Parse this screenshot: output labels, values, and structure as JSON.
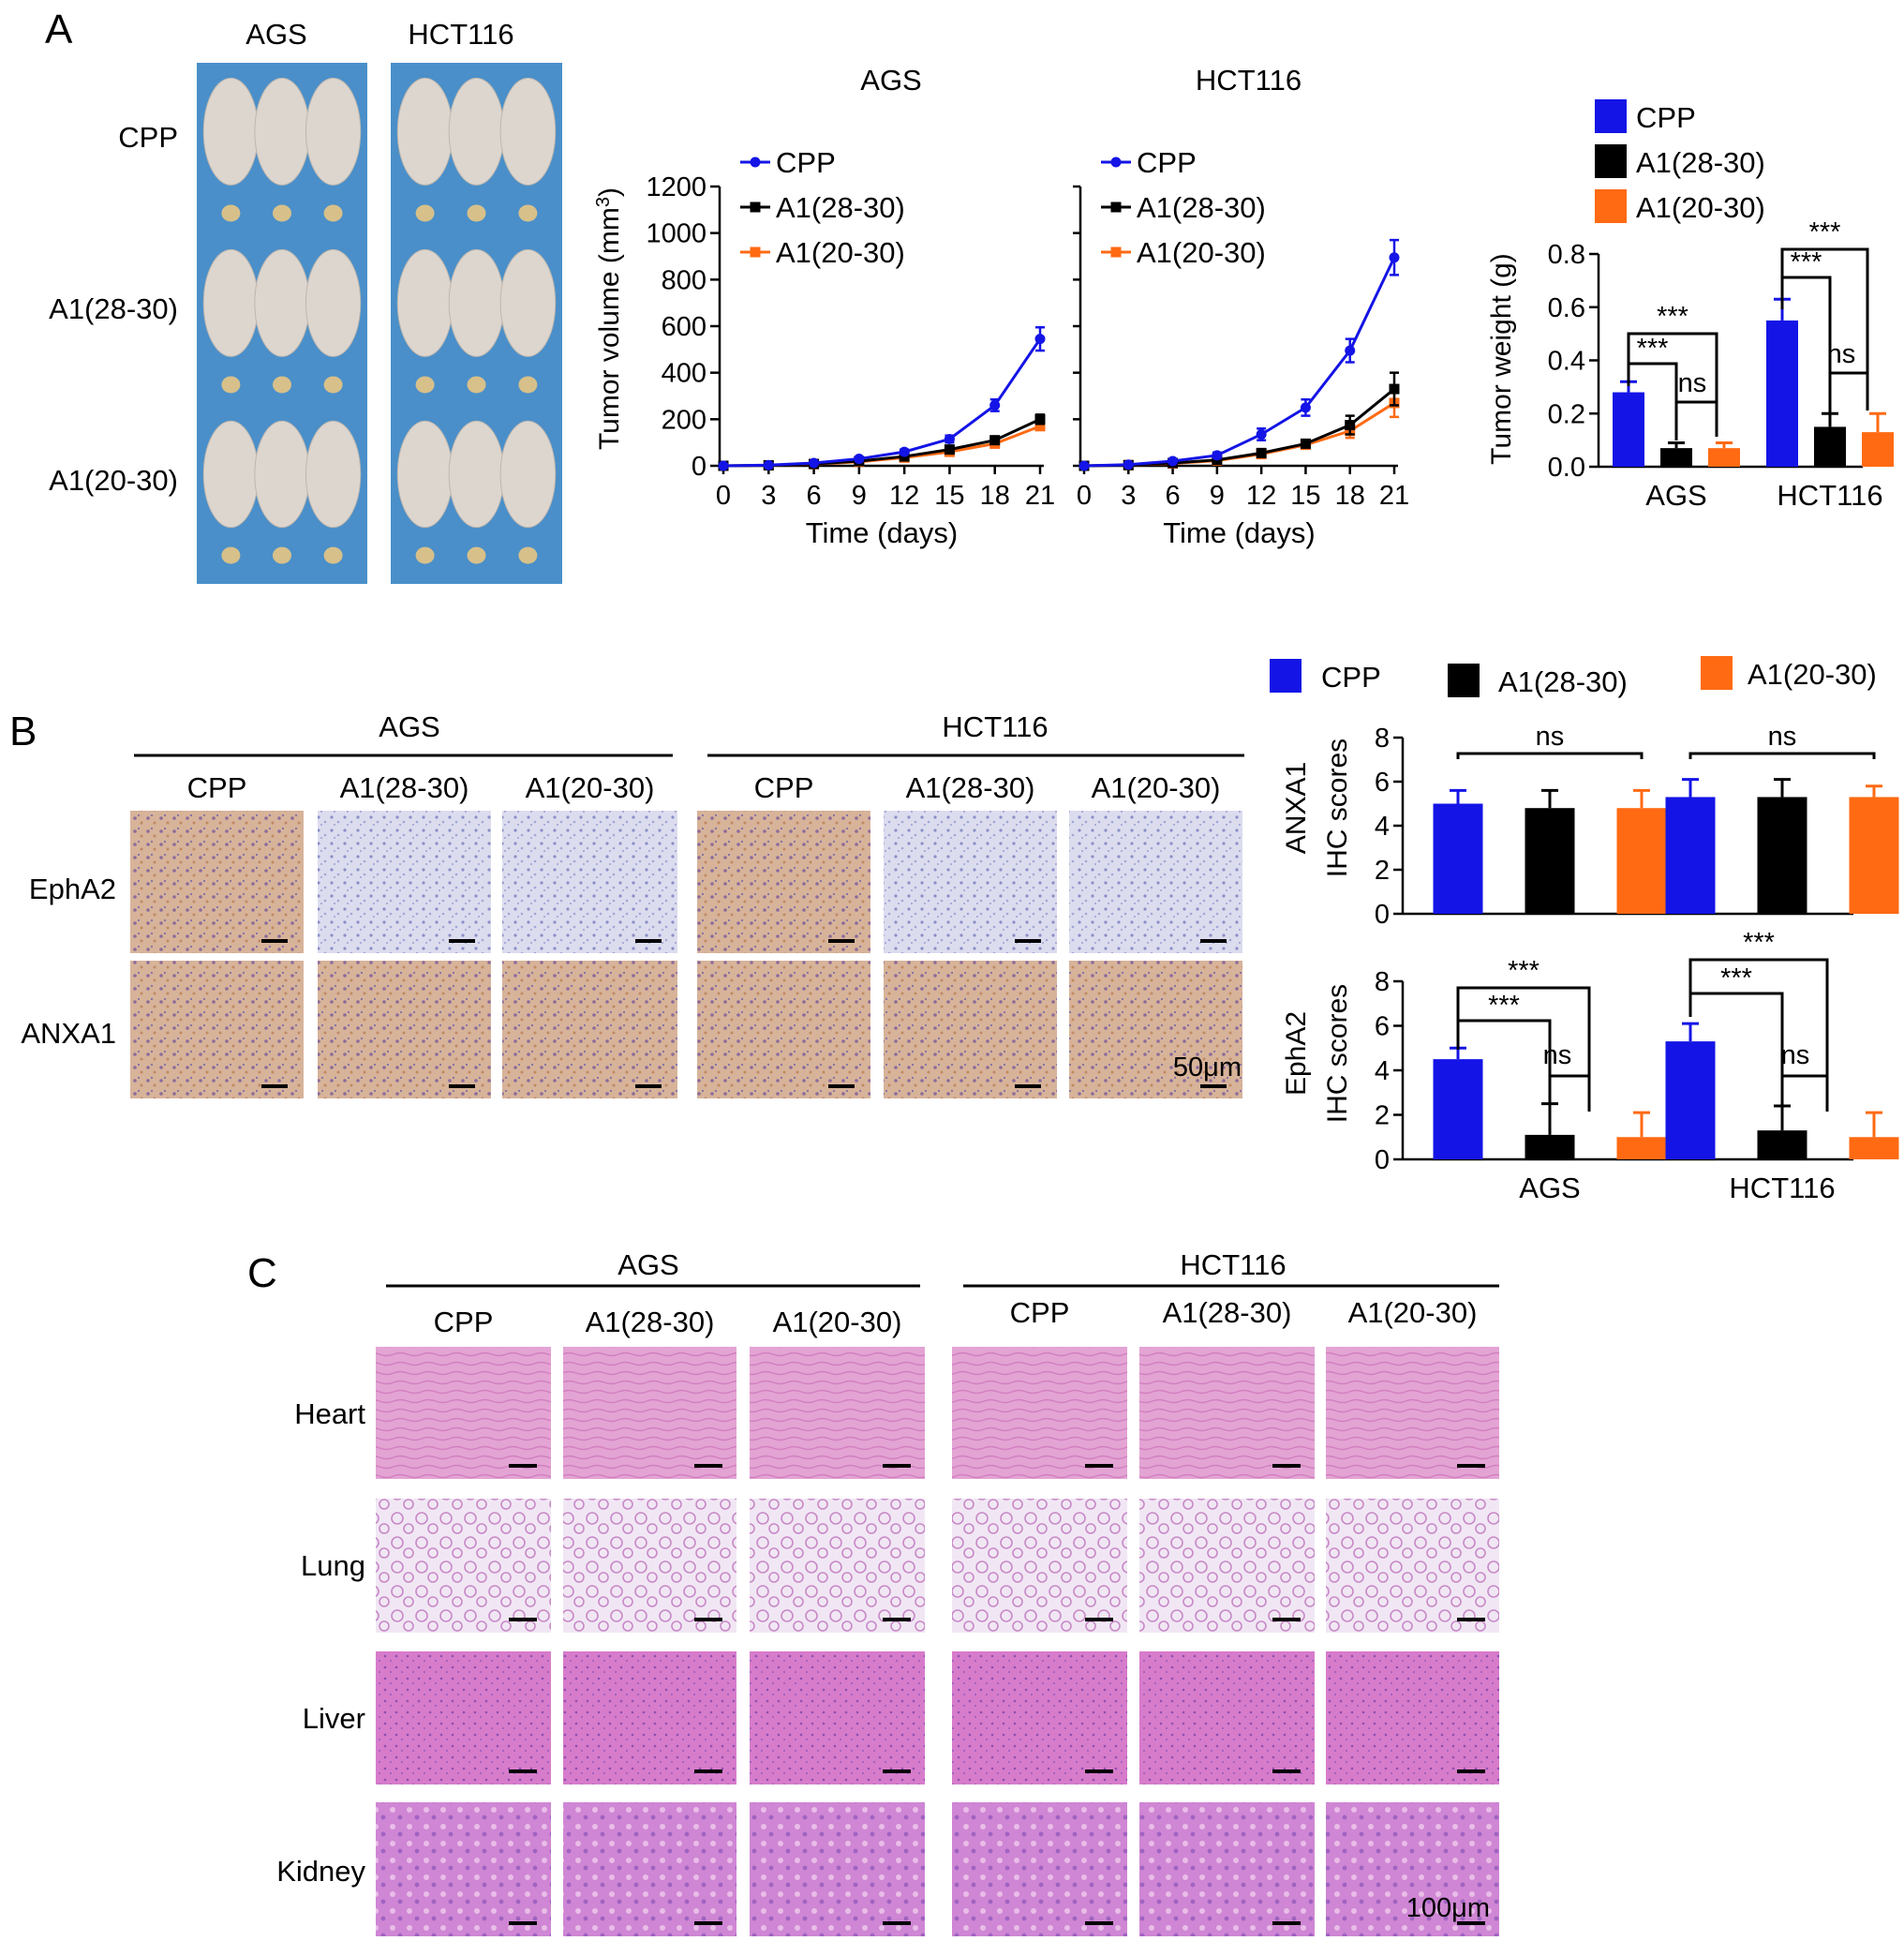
{
  "panels": {
    "a": "A",
    "b": "B",
    "c": "C"
  },
  "colors": {
    "CPP": "#1414e6",
    "A1(28-30)": "#000000",
    "A1(20-30)": "#ff6a13",
    "mouse_bg": "#4a8fc9"
  },
  "mice": {
    "col_labels": [
      "AGS",
      "HCT116"
    ],
    "row_labels": [
      "CPP",
      "A1(28-30)",
      "A1(20-30)"
    ]
  },
  "growth": {
    "ylabel": "Tumor volume (mm",
    "ylabel_sup": "3",
    "ylabel_close": ")",
    "xlabel": "Time (days)",
    "x_ticks": [
      "0",
      "3",
      "6",
      "9",
      "12",
      "15",
      "18",
      "21"
    ],
    "y_ticks": [
      "0",
      "200",
      "400",
      "600",
      "800",
      "1000",
      "1200"
    ],
    "legend": [
      "CPP",
      "A1(28-30)",
      "A1(20-30)"
    ]
  },
  "weight": {
    "ylabel": "Tumor weight (g)",
    "y_ticks": [
      "0.0",
      "0.2",
      "0.4",
      "0.6",
      "0.8"
    ],
    "legend": [
      "CPP",
      "A1(28-30)",
      "A1(20-30)"
    ],
    "sig": "***",
    "ns": "ns"
  },
  "ihc": {
    "group_labels": [
      "AGS",
      "HCT116"
    ],
    "col_labels": [
      "CPP",
      "A1(28-30)",
      "A1(20-30)",
      "CPP",
      "A1(28-30)",
      "A1(20-30)"
    ],
    "row_labels": [
      "EphA2",
      "ANXA1"
    ],
    "scale": "50μm",
    "legend": [
      "CPP",
      "A1(28-30)",
      "A1(20-30)"
    ],
    "ylabel_anxa1": [
      "ANXA1",
      "IHC scores"
    ],
    "ylabel_epha2": [
      "EphA2",
      "IHC scores"
    ],
    "y_ticks": [
      "0",
      "2",
      "4",
      "6",
      "8"
    ],
    "sig": "***",
    "ns": "ns"
  },
  "he": {
    "group_labels": [
      "AGS",
      "HCT116"
    ],
    "col_labels": [
      "CPP",
      "A1(28-30)",
      "A1(20-30)",
      "CPP",
      "A1(28-30)",
      "A1(20-30)"
    ],
    "row_labels": [
      "Heart",
      "Lung",
      "Liver",
      "Kidney"
    ],
    "scale": "100μm"
  },
  "chart_data": [
    {
      "type": "line",
      "title": "AGS",
      "xlabel": "Time (days)",
      "ylabel": "Tumor volume (mm3)",
      "x": [
        0,
        3,
        6,
        9,
        12,
        15,
        18,
        21
      ],
      "xlim": [
        0,
        21
      ],
      "ylim": [
        0,
        1200
      ],
      "series": [
        {
          "name": "CPP",
          "values": [
            0,
            3,
            12,
            30,
            60,
            115,
            260,
            545
          ],
          "errors": [
            0,
            2,
            5,
            8,
            10,
            15,
            25,
            50
          ]
        },
        {
          "name": "A1(28-30)",
          "values": [
            0,
            2,
            8,
            20,
            40,
            70,
            110,
            200
          ],
          "errors": [
            0,
            1,
            3,
            5,
            6,
            10,
            12,
            20
          ]
        },
        {
          "name": "A1(20-30)",
          "values": [
            0,
            2,
            7,
            17,
            35,
            60,
            95,
            170
          ],
          "errors": [
            0,
            1,
            3,
            4,
            5,
            8,
            10,
            15
          ]
        }
      ],
      "legend": "top-left"
    },
    {
      "type": "line",
      "title": "HCT116",
      "xlabel": "Time (days)",
      "x": [
        0,
        3,
        6,
        9,
        12,
        15,
        18,
        21
      ],
      "xlim": [
        0,
        21
      ],
      "ylim": [
        0,
        1200
      ],
      "series": [
        {
          "name": "CPP",
          "values": [
            0,
            5,
            20,
            45,
            135,
            250,
            495,
            895
          ],
          "errors": [
            0,
            3,
            8,
            12,
            25,
            35,
            50,
            75
          ]
        },
        {
          "name": "A1(28-30)",
          "values": [
            0,
            3,
            12,
            25,
            55,
            95,
            175,
            330
          ],
          "errors": [
            0,
            2,
            5,
            8,
            10,
            15,
            40,
            70
          ]
        },
        {
          "name": "A1(20-30)",
          "values": [
            0,
            3,
            10,
            22,
            50,
            90,
            150,
            270
          ],
          "errors": [
            0,
            2,
            5,
            6,
            8,
            12,
            30,
            60
          ]
        }
      ],
      "legend": "top-left"
    },
    {
      "type": "bar",
      "ylabel": "Tumor weight (g)",
      "categories": [
        "AGS",
        "HCT116"
      ],
      "ylim": [
        0,
        0.8
      ],
      "series": [
        {
          "name": "CPP",
          "values": [
            0.28,
            0.55
          ],
          "errors": [
            0.04,
            0.08
          ]
        },
        {
          "name": "A1(28-30)",
          "values": [
            0.07,
            0.15
          ],
          "errors": [
            0.02,
            0.05
          ]
        },
        {
          "name": "A1(20-30)",
          "values": [
            0.07,
            0.13
          ],
          "errors": [
            0.02,
            0.07
          ]
        }
      ],
      "annotations": [
        "***",
        "***",
        "ns",
        "***",
        "***",
        "ns"
      ],
      "legend": "top"
    },
    {
      "type": "bar",
      "ylabel": "ANXA1 IHC scores",
      "categories": [
        "AGS",
        "HCT116"
      ],
      "ylim": [
        0,
        8
      ],
      "series": [
        {
          "name": "CPP",
          "values": [
            5.0,
            5.3
          ],
          "errors": [
            0.6,
            0.8
          ]
        },
        {
          "name": "A1(28-30)",
          "values": [
            4.8,
            5.3
          ],
          "errors": [
            0.8,
            0.8
          ]
        },
        {
          "name": "A1(20-30)",
          "values": [
            4.8,
            5.3
          ],
          "errors": [
            0.8,
            0.5
          ]
        }
      ],
      "annotations": [
        "ns",
        "ns"
      ],
      "legend": "top"
    },
    {
      "type": "bar",
      "ylabel": "EphA2 IHC scores",
      "categories": [
        "AGS",
        "HCT116"
      ],
      "ylim": [
        0,
        8
      ],
      "series": [
        {
          "name": "CPP",
          "values": [
            4.5,
            5.3
          ],
          "errors": [
            0.5,
            0.8
          ]
        },
        {
          "name": "A1(28-30)",
          "values": [
            1.1,
            1.3
          ],
          "errors": [
            1.4,
            1.1
          ]
        },
        {
          "name": "A1(20-30)",
          "values": [
            1.0,
            1.0
          ],
          "errors": [
            1.1,
            1.1
          ]
        }
      ],
      "annotations": [
        "***",
        "***",
        "ns",
        "***",
        "***",
        "ns"
      ]
    }
  ]
}
